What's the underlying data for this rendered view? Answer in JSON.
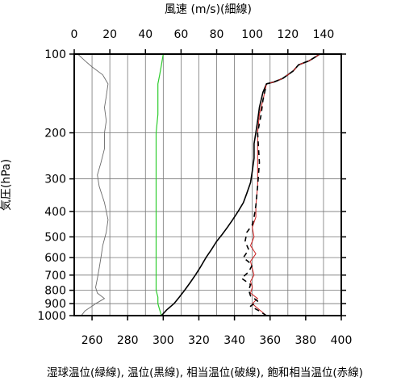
{
  "chart_data": {
    "type": "line",
    "title_top_axis": "風速 (m/s)(細線)",
    "xlabel": "湿球温位(緑線), 温位(黒線), 相当温位(破線), 飽和相当温位(赤線)",
    "ylabel": "気圧(hPa)",
    "x_bottom": {
      "range": [
        250,
        400
      ],
      "ticks": [
        260,
        280,
        300,
        320,
        340,
        360,
        380,
        400
      ]
    },
    "x_top": {
      "range": [
        0,
        150
      ],
      "ticks": [
        0,
        20,
        40,
        60,
        80,
        100,
        120,
        140
      ]
    },
    "y": {
      "scale": "log",
      "range": [
        1000,
        100
      ],
      "inverted": true,
      "ticks": [
        100,
        200,
        300,
        400,
        500,
        600,
        700,
        800,
        900,
        1000
      ]
    },
    "grid": true,
    "series": [
      {
        "key": "wind",
        "color": "#6a6a6a",
        "axis": "top",
        "style": "thin",
        "points": [
          [
            4,
            1000
          ],
          [
            6,
            960
          ],
          [
            12,
            900
          ],
          [
            17,
            860
          ],
          [
            13,
            820
          ],
          [
            12,
            780
          ],
          [
            13,
            720
          ],
          [
            14,
            660
          ],
          [
            15,
            600
          ],
          [
            16,
            540
          ],
          [
            18,
            480
          ],
          [
            19,
            430
          ],
          [
            17,
            370
          ],
          [
            14,
            320
          ],
          [
            13,
            290
          ],
          [
            15,
            260
          ],
          [
            17,
            230
          ],
          [
            17,
            200
          ],
          [
            18,
            180
          ],
          [
            17,
            160
          ],
          [
            18,
            145
          ],
          [
            19,
            130
          ],
          [
            16,
            120
          ],
          [
            10,
            112
          ],
          [
            6,
            106
          ],
          [
            2,
            100
          ]
        ]
      },
      {
        "key": "wet-bulb",
        "color": "#2ecc2e",
        "axis": "bottom",
        "style": "solid",
        "points": [
          [
            299,
            1000
          ],
          [
            298,
            950
          ],
          [
            297,
            900
          ],
          [
            297,
            850
          ],
          [
            296,
            800
          ],
          [
            296,
            750
          ],
          [
            296,
            700
          ],
          [
            296,
            650
          ],
          [
            296,
            600
          ],
          [
            296,
            550
          ],
          [
            296,
            500
          ],
          [
            296,
            450
          ],
          [
            296,
            400
          ],
          [
            296,
            350
          ],
          [
            296,
            300
          ],
          [
            296,
            250
          ],
          [
            296,
            200
          ],
          [
            297,
            170
          ],
          [
            297,
            150
          ],
          [
            297,
            140
          ],
          [
            297,
            130
          ],
          [
            298,
            120
          ],
          [
            299,
            110
          ],
          [
            300,
            100
          ]
        ]
      },
      {
        "key": "potential-temp",
        "color": "#000000",
        "axis": "bottom",
        "style": "solid",
        "points": [
          [
            299,
            1000
          ],
          [
            302,
            950
          ],
          [
            306,
            900
          ],
          [
            309,
            850
          ],
          [
            312,
            800
          ],
          [
            315,
            750
          ],
          [
            318,
            700
          ],
          [
            321,
            650
          ],
          [
            324,
            600
          ],
          [
            327,
            560
          ],
          [
            330,
            520
          ],
          [
            333,
            490
          ],
          [
            336,
            460
          ],
          [
            339,
            430
          ],
          [
            342,
            400
          ],
          [
            345,
            370
          ],
          [
            347,
            340
          ],
          [
            349,
            310
          ],
          [
            350,
            280
          ],
          [
            351,
            250
          ],
          [
            351,
            220
          ],
          [
            352,
            200
          ],
          [
            353,
            180
          ],
          [
            354,
            160
          ],
          [
            356,
            140
          ],
          [
            358,
            130
          ],
          [
            362,
            128
          ],
          [
            367,
            124
          ],
          [
            373,
            116
          ],
          [
            376,
            110
          ],
          [
            382,
            106
          ],
          [
            386,
            102
          ],
          [
            388,
            100
          ]
        ]
      },
      {
        "key": "equiv-potential-temp",
        "color": "#000000",
        "axis": "bottom",
        "style": "dashed",
        "points": [
          [
            358,
            1000
          ],
          [
            354,
            960
          ],
          [
            349,
            920
          ],
          [
            353,
            880
          ],
          [
            349,
            840
          ],
          [
            348,
            800
          ],
          [
            349,
            760
          ],
          [
            344,
            720
          ],
          [
            348,
            680
          ],
          [
            350,
            640
          ],
          [
            345,
            600
          ],
          [
            348,
            560
          ],
          [
            346,
            520
          ],
          [
            347,
            480
          ],
          [
            350,
            450
          ],
          [
            351,
            420
          ],
          [
            352,
            380
          ],
          [
            353,
            320
          ],
          [
            354,
            260
          ],
          [
            353,
            200
          ],
          [
            355,
            170
          ],
          [
            356,
            150
          ],
          [
            358,
            130
          ],
          [
            362,
            128
          ],
          [
            367,
            124
          ],
          [
            373,
            116
          ],
          [
            376,
            110
          ],
          [
            382,
            106
          ],
          [
            386,
            102
          ],
          [
            388,
            100
          ]
        ]
      },
      {
        "key": "sat-equiv-potential-temp",
        "color": "#cc2222",
        "axis": "bottom",
        "style": "solid",
        "points": [
          [
            358,
            1000
          ],
          [
            354,
            950
          ],
          [
            350,
            900
          ],
          [
            353,
            860
          ],
          [
            349,
            820
          ],
          [
            350,
            780
          ],
          [
            349,
            740
          ],
          [
            351,
            700
          ],
          [
            350,
            660
          ],
          [
            349,
            620
          ],
          [
            352,
            580
          ],
          [
            349,
            540
          ],
          [
            351,
            500
          ],
          [
            350,
            460
          ],
          [
            352,
            420
          ],
          [
            352,
            380
          ],
          [
            353,
            320
          ],
          [
            353,
            260
          ],
          [
            353,
            200
          ],
          [
            354,
            170
          ],
          [
            356,
            150
          ],
          [
            358,
            130
          ],
          [
            362,
            128
          ],
          [
            367,
            124
          ],
          [
            373,
            116
          ],
          [
            376,
            110
          ],
          [
            382,
            106
          ],
          [
            386,
            102
          ],
          [
            388,
            100
          ]
        ]
      }
    ]
  }
}
